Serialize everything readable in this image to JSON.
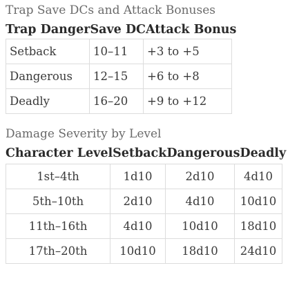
{
  "section1": {
    "caption": "Trap Save DCs and Attack Bonuses",
    "headers": [
      "Trap Danger",
      "Save DC",
      "Attack Bonus"
    ],
    "rows": [
      [
        "Setback",
        "10–11",
        "+3 to +5"
      ],
      [
        "Dangerous",
        "12–15",
        "+6 to +8"
      ],
      [
        "Deadly",
        "16–20",
        "+9 to +12"
      ]
    ]
  },
  "section2": {
    "caption": "Damage Severity by Level",
    "headers": [
      "Character Level",
      "Setback",
      "Dangerous",
      "Deadly"
    ],
    "rows": [
      [
        "1st–4th",
        "1d10",
        "2d10",
        "4d10"
      ],
      [
        "5th–10th",
        "2d10",
        "4d10",
        "10d10"
      ],
      [
        "11th–16th",
        "4d10",
        "10d10",
        "18d10"
      ],
      [
        "17th–20th",
        "10d10",
        "18d10",
        "24d10"
      ]
    ]
  }
}
